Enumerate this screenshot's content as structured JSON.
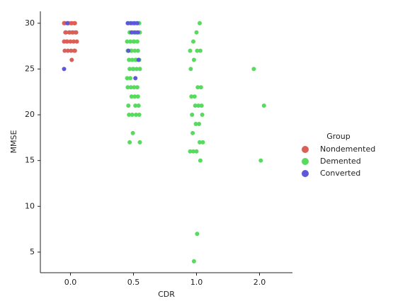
{
  "chart_data": {
    "type": "strip",
    "x_label": "CDR",
    "y_label": "MMSE",
    "categories": [
      "0.0",
      "0.5",
      "1.0",
      "2.0"
    ],
    "ylim": [
      2.75,
      31.3
    ],
    "yticks": [
      5,
      10,
      15,
      20,
      25,
      30
    ],
    "legend_title": "Group",
    "legend_position": "right",
    "series": [
      {
        "name": "Nondemented",
        "color": "#db5f57",
        "x": [
          "0.0",
          "0.0",
          "0.0",
          "0.0",
          "0.0",
          "0.0",
          "0.0",
          "0.0",
          "0.0",
          "0.0",
          "0.0",
          "0.0",
          "0.0",
          "0.0",
          "0.0",
          "0.0",
          "0.0",
          "0.0",
          "0.0",
          "0.0",
          "0.0",
          "0.0",
          "0.0",
          "0.0",
          "0.0",
          "0.0",
          "0.0",
          "0.0"
        ],
        "values": [
          30,
          30,
          30,
          30,
          30,
          30,
          30,
          30,
          29,
          29,
          29,
          29,
          29,
          29,
          29,
          29,
          28,
          28,
          28,
          28,
          28,
          28,
          27,
          27,
          27,
          27,
          27,
          26
        ]
      },
      {
        "name": "Demented",
        "color": "#57db5f",
        "x": [
          "0.5",
          "0.5",
          "0.5",
          "0.5",
          "0.5",
          "0.5",
          "0.5",
          "0.5",
          "0.5",
          "0.5",
          "0.5",
          "0.5",
          "0.5",
          "0.5",
          "0.5",
          "0.5",
          "0.5",
          "0.5",
          "0.5",
          "0.5",
          "0.5",
          "0.5",
          "0.5",
          "0.5",
          "0.5",
          "0.5",
          "0.5",
          "0.5",
          "0.5",
          "0.5",
          "0.5",
          "0.5",
          "0.5",
          "0.5",
          "0.5",
          "0.5",
          "0.5",
          "0.5",
          "0.5",
          "0.5",
          "0.5",
          "0.5",
          "0.5",
          "0.5",
          "0.5",
          "0.5",
          "0.5",
          "0.5",
          "0.5",
          "0.5",
          "1.0",
          "1.0",
          "1.0",
          "1.0",
          "1.0",
          "1.0",
          "1.0",
          "1.0",
          "1.0",
          "1.0",
          "1.0",
          "1.0",
          "1.0",
          "1.0",
          "1.0",
          "1.0",
          "1.0",
          "1.0",
          "1.0",
          "1.0",
          "1.0",
          "1.0",
          "1.0",
          "1.0",
          "1.0",
          "1.0",
          "1.0",
          "1.0",
          "2.0",
          "2.0",
          "2.0"
        ],
        "values": [
          30,
          30,
          30,
          30,
          29,
          29,
          29,
          29,
          29,
          28,
          28,
          28,
          28,
          28,
          27,
          27,
          27,
          27,
          27,
          27,
          26,
          26,
          26,
          26,
          26,
          26,
          25,
          25,
          25,
          25,
          25,
          24,
          24,
          23,
          23,
          23,
          23,
          22,
          22,
          22,
          21,
          21,
          21,
          20,
          20,
          20,
          20,
          18,
          17,
          17,
          30,
          29,
          28,
          27,
          27,
          27,
          26,
          25,
          23,
          23,
          22,
          22,
          21,
          21,
          21,
          20,
          20,
          19,
          19,
          18,
          17,
          17,
          16,
          16,
          16,
          15,
          7,
          4,
          25,
          21,
          15
        ]
      },
      {
        "name": "Converted",
        "color": "#5f57db",
        "x": [
          "0.0",
          "0.0",
          "0.5",
          "0.5",
          "0.5",
          "0.5",
          "0.5",
          "0.5",
          "0.5",
          "0.5",
          "0.5",
          "0.5"
        ],
        "values": [
          30,
          25,
          30,
          30,
          30,
          30,
          29,
          29,
          29,
          27,
          26,
          24
        ]
      }
    ]
  }
}
